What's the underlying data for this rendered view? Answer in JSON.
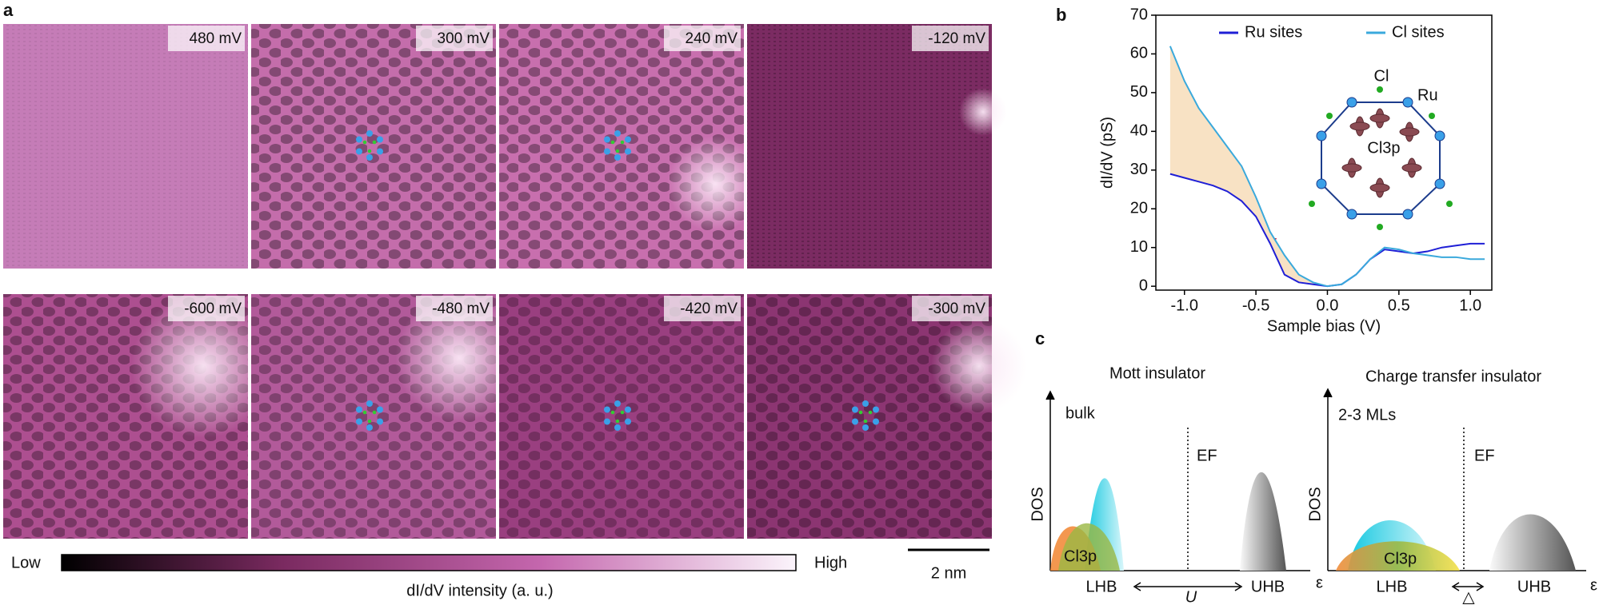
{
  "panel_a": {
    "label": "a",
    "images": [
      "480 mV",
      "300 mV",
      "240 mV",
      "-120 mV",
      "-600 mV",
      "-480 mV",
      "-420 mV",
      "-300 mV"
    ]
  },
  "colorbar": {
    "low": "Low",
    "high": "High",
    "label": "dI/dV  intensity (a. u.)"
  },
  "scale_bar": "2 nm",
  "panel_b_label": "b",
  "chart_data": {
    "type": "line",
    "xlabel": "Sample bias (V)",
    "ylabel": "dI/dV (pS)",
    "x": [
      -1.1,
      -1.0,
      -0.9,
      -0.8,
      -0.7,
      -0.6,
      -0.5,
      -0.4,
      -0.3,
      -0.2,
      -0.1,
      0,
      0.1,
      0.2,
      0.3,
      0.4,
      0.5,
      0.6,
      0.7,
      0.8,
      0.9,
      1.0,
      1.1
    ],
    "series": [
      {
        "name": "Ru sites",
        "color": "#1f1fd6",
        "values": [
          29,
          28,
          27,
          26,
          24.5,
          22,
          18,
          11,
          3,
          1,
          0.5,
          0,
          0.5,
          3,
          7,
          9.5,
          9,
          8.5,
          9,
          10,
          10.5,
          11,
          11
        ]
      },
      {
        "name": "Cl sites",
        "color": "#3aa9dc",
        "values": [
          62,
          53,
          46,
          41,
          36,
          31,
          23,
          14,
          8,
          3,
          1,
          0,
          0.5,
          3,
          7,
          10,
          9.5,
          8.5,
          8,
          7.5,
          7.5,
          7,
          7
        ]
      }
    ],
    "fill_color": "#f8e2c4",
    "xlim": [
      -1.2,
      1.15
    ],
    "ylim": [
      -1,
      70
    ],
    "xticks": [
      {
        "value": -1,
        "label": "-1.0"
      },
      -0.5,
      {
        "value": 0,
        "label": "0.0"
      },
      0.5,
      {
        "value": 1,
        "label": "1.0"
      }
    ],
    "yticks": [
      0,
      10,
      20,
      30,
      40,
      50,
      60,
      70
    ],
    "legend": "top",
    "inset_labels": [
      "Cl",
      "Ru",
      "Cl3p"
    ]
  },
  "panel_c": {
    "label": "c",
    "mott": {
      "title": "Mott insulator",
      "sample": "bulk",
      "ef": "EF",
      "dos": "DOS",
      "band_p": "Cl3p",
      "lhb": "LHB",
      "uhb": "UHB",
      "gap": "U",
      "energy": "ε"
    },
    "ct": {
      "title": "Charge transfer insulator",
      "sample": "2-3 MLs",
      "ef": "EF",
      "dos": "DOS",
      "band_p": "Cl3p",
      "lhb": "LHB",
      "uhb": "UHB",
      "gap": "△",
      "energy": "ε"
    }
  }
}
